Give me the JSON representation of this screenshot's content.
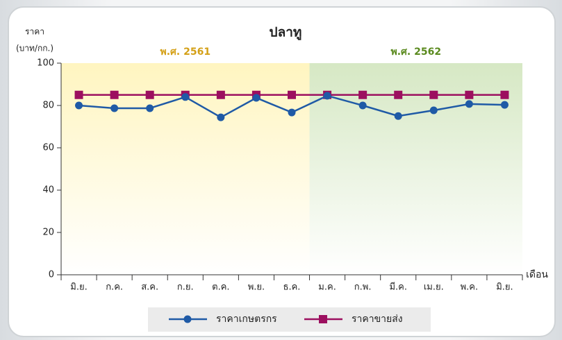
{
  "chart_data": {
    "type": "line",
    "title": "ปลาทู",
    "ylabel": [
      "ราคา",
      "(บาท/กก.)"
    ],
    "xlabel": "เดือน",
    "annotations": [
      {
        "label": "พ.ศ. 2561",
        "color": "#d4a017"
      },
      {
        "label": "พ.ศ. 2562",
        "color": "#5a8a1e"
      }
    ],
    "categories": [
      "มิ.ย.",
      "ก.ค.",
      "ส.ค.",
      "ก.ย.",
      "ต.ค.",
      "พ.ย.",
      "ธ.ค.",
      "ม.ค.",
      "ก.พ.",
      "มี.ค.",
      "เม.ย.",
      "พ.ค.",
      "มิ.ย."
    ],
    "series": [
      {
        "name": "ราคาเกษตรกร",
        "color": "#1f5aa6",
        "marker": "circle",
        "values": [
          80,
          78.7,
          78.7,
          84,
          74.4,
          83.6,
          76.7,
          84.6,
          80,
          75,
          77.7,
          80.7,
          80.3
        ]
      },
      {
        "name": "ราคาขายส่ง",
        "color": "#9c0f5f",
        "marker": "square",
        "values": [
          85,
          85,
          85,
          85,
          85,
          85,
          85,
          85,
          85,
          85,
          85,
          85,
          85
        ]
      }
    ],
    "ylim": [
      0,
      100
    ],
    "yticks": [
      0,
      20,
      40,
      60,
      80,
      100
    ],
    "grid": false,
    "legend": "bottom"
  }
}
